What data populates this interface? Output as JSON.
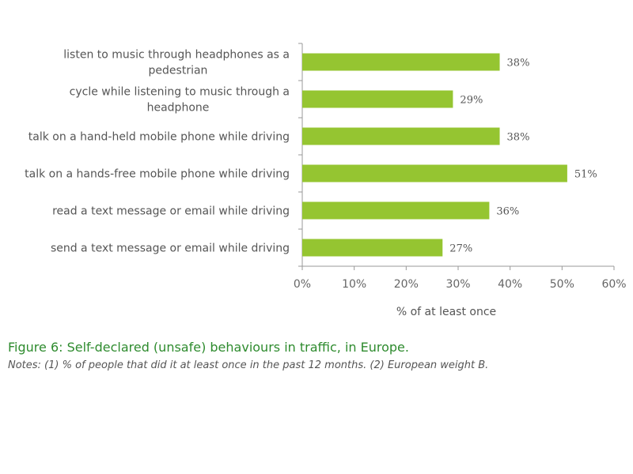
{
  "chart_data": {
    "type": "bar",
    "orientation": "horizontal",
    "categories": [
      [
        "listen to music through headphones as a",
        "pedestrian"
      ],
      [
        "cycle while listening to music through a",
        "headphone"
      ],
      [
        "talk on a hand-held mobile phone while driving"
      ],
      [
        "talk on a hands-free mobile phone while driving"
      ],
      [
        "read a text message or email while driving"
      ],
      [
        "send a text message or email while driving"
      ]
    ],
    "values": [
      38,
      29,
      38,
      51,
      36,
      27
    ],
    "value_labels": [
      "38%",
      "29%",
      "38%",
      "51%",
      "36%",
      "27%"
    ],
    "xlim": [
      0,
      60
    ],
    "x_ticks": [
      0,
      10,
      20,
      30,
      40,
      50,
      60
    ],
    "x_tick_labels": [
      "0%",
      "10%",
      "20%",
      "30%",
      "40%",
      "50%",
      "60%"
    ],
    "xlabel": "% of at least once",
    "grid": false,
    "bar_color": "#95c531"
  },
  "caption": {
    "title": "Figure 6: Self-declared (unsafe) behaviours in traffic, in Europe.",
    "notes": "Notes: (1) % of people that did it at least once in the past 12 months. (2) European weight B."
  }
}
